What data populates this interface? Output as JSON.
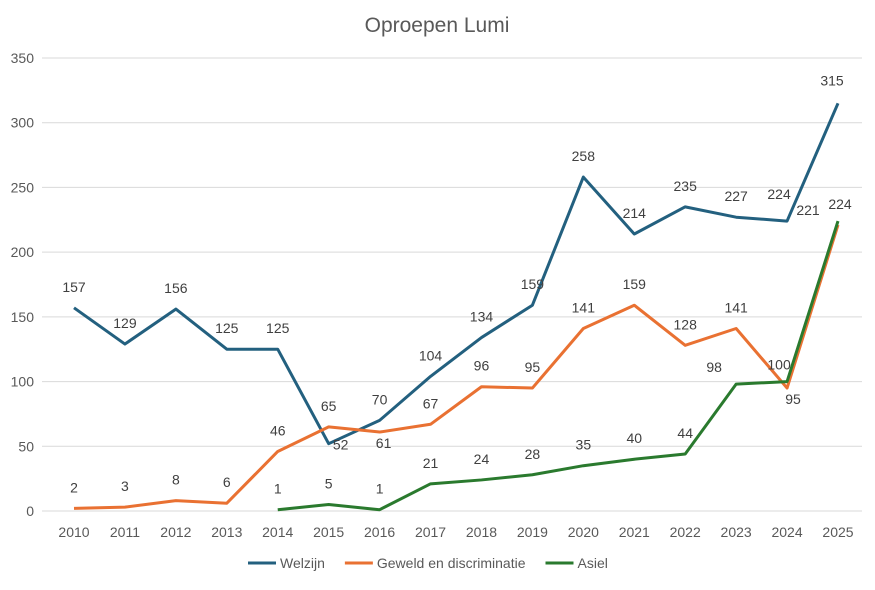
{
  "chart_data": {
    "type": "line",
    "title": "Oproepen Lumi",
    "xlabel": "",
    "ylabel": "",
    "categories": [
      "2010",
      "2011",
      "2012",
      "2013",
      "2014",
      "2015",
      "2016",
      "2017",
      "2018",
      "2019",
      "2020",
      "2021",
      "2022",
      "2023",
      "2024",
      "2025"
    ],
    "ylim": [
      0,
      350
    ],
    "yticks": [
      0,
      50,
      100,
      150,
      200,
      250,
      300,
      350
    ],
    "grid": true,
    "legend_position": "bottom",
    "series": [
      {
        "name": "Welzijn",
        "color": "#23607f",
        "values": [
          157,
          129,
          156,
          125,
          125,
          52,
          70,
          104,
          134,
          159,
          258,
          214,
          235,
          227,
          224,
          315
        ]
      },
      {
        "name": "Geweld en discriminatie",
        "color": "#e97132",
        "values": [
          2,
          3,
          8,
          6,
          46,
          65,
          61,
          67,
          96,
          95,
          141,
          159,
          128,
          141,
          95,
          221
        ]
      },
      {
        "name": "Asiel",
        "color": "#2a7a2e",
        "values": [
          null,
          null,
          null,
          null,
          1,
          5,
          1,
          21,
          24,
          28,
          35,
          40,
          44,
          98,
          100,
          224
        ]
      }
    ]
  }
}
